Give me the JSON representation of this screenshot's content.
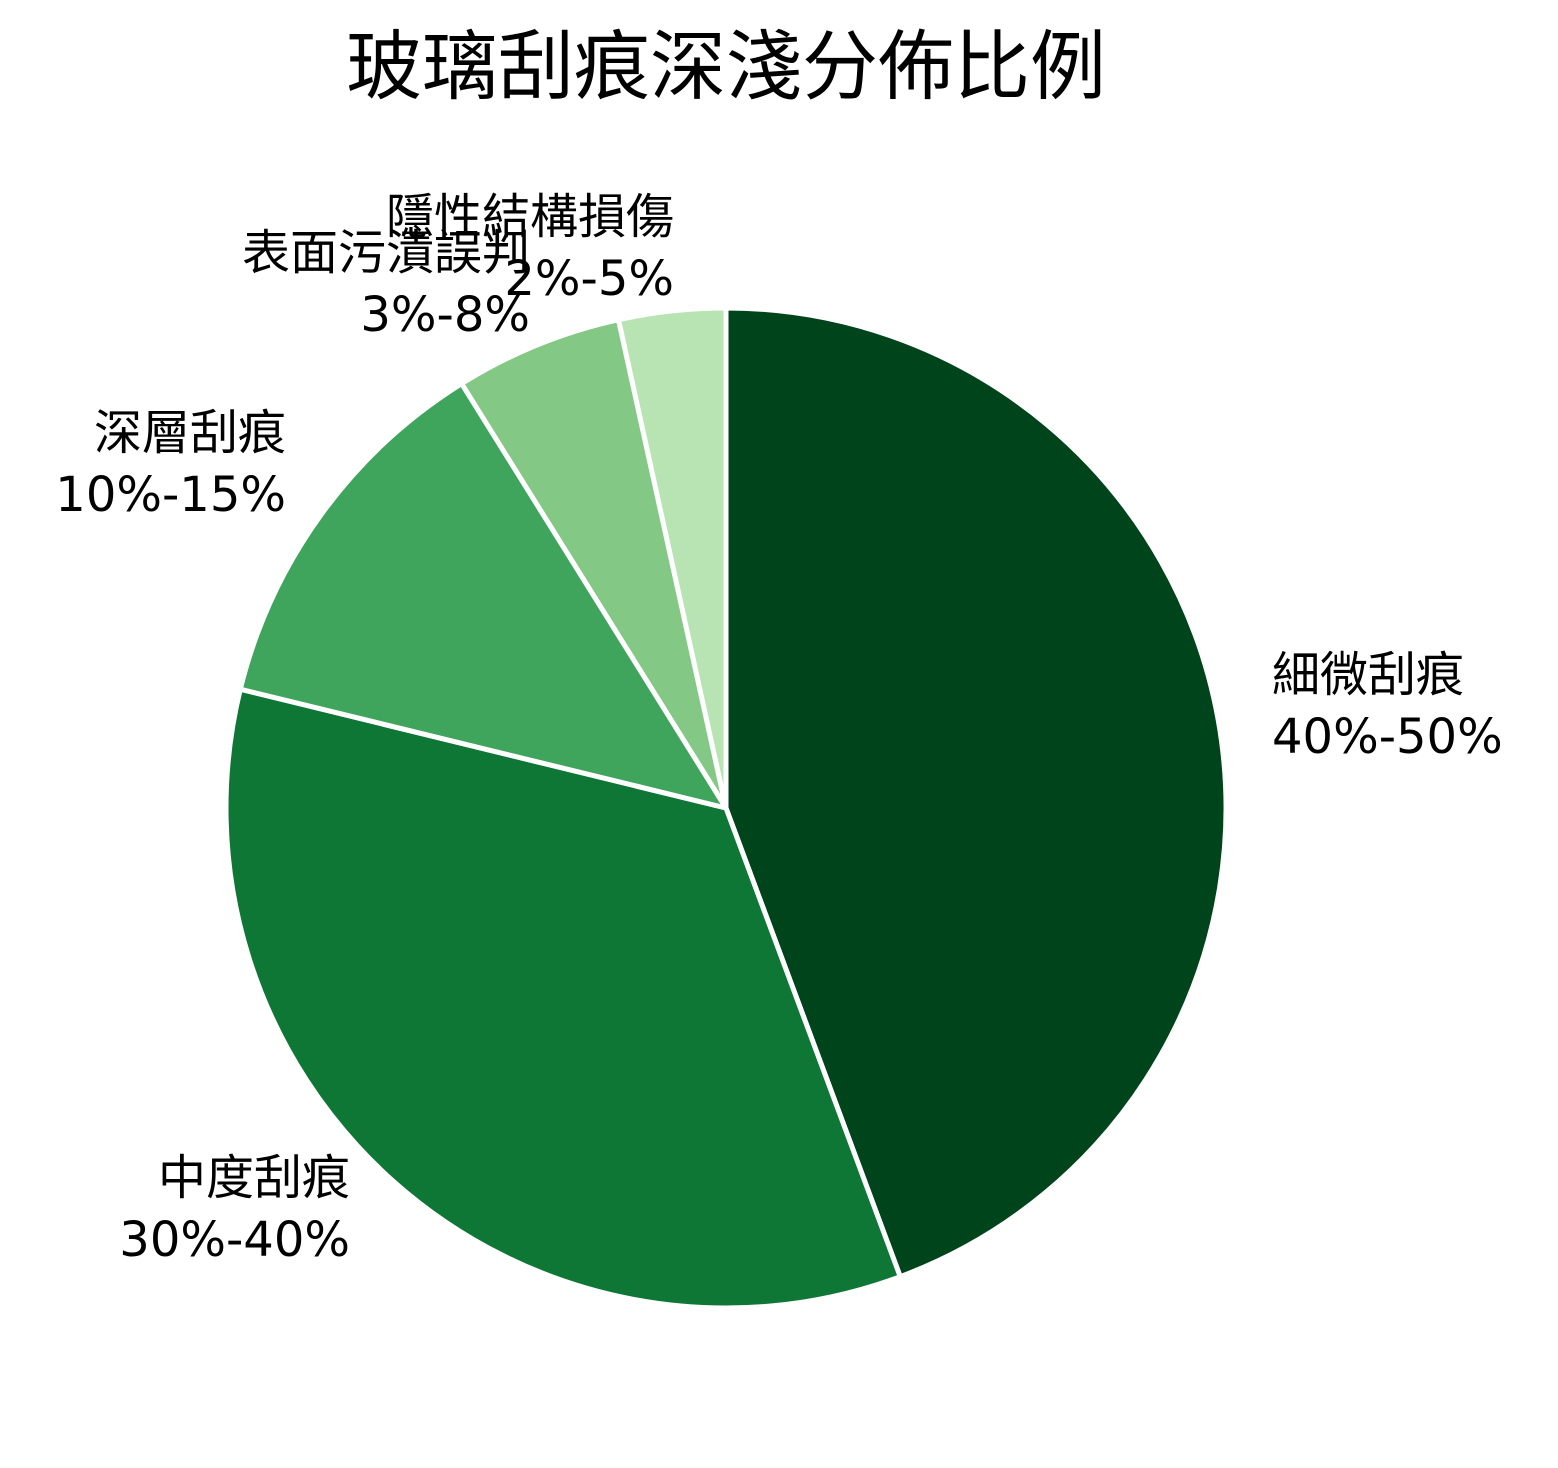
{
  "chart_data": {
    "type": "pie",
    "title": "玻璃刮痕深淺分佈比例",
    "start_angle": "top (12 o'clock)",
    "direction": "clockwise",
    "categories": [
      "細微刮痕",
      "中度刮痕",
      "深層刮痕",
      "表面污漬誤判",
      "隱性結構損傷"
    ],
    "ranges": [
      "40%-50%",
      "30%-40%",
      "10%-15%",
      "3%-8%",
      "2%-5%"
    ],
    "values": [
      45,
      35,
      12.5,
      5.5,
      3.5
    ],
    "colors": [
      "#00441b",
      "#0e7735",
      "#3fa45c",
      "#83c884",
      "#b8e3b3"
    ],
    "slice_edge_color": "#ffffff",
    "legend": "none (labels outside slices)"
  },
  "labels": [
    {
      "name": "細微刮痕",
      "range": "40%-50%"
    },
    {
      "name": "中度刮痕",
      "range": "30%-40%"
    },
    {
      "name": "深層刮痕",
      "range": "10%-15%"
    },
    {
      "name": "表面污漬誤判",
      "range": "3%-8%"
    },
    {
      "name": "隱性結構損傷",
      "range": "2%-5%"
    }
  ]
}
